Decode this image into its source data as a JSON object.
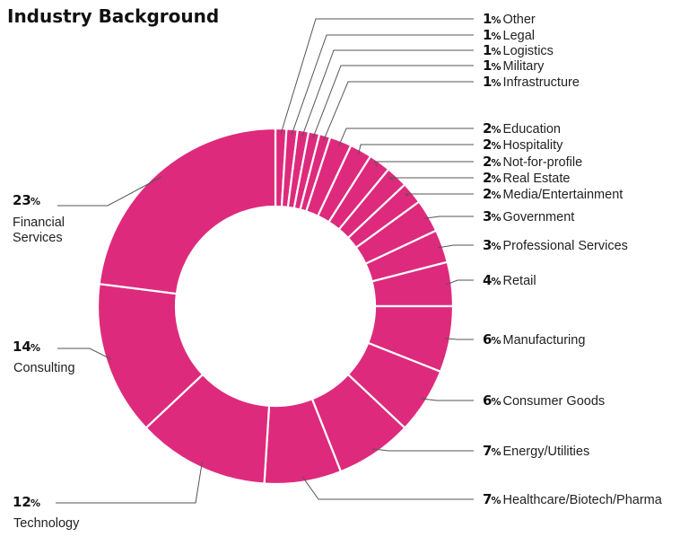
{
  "chart_data": {
    "type": "pie",
    "title": "Industry Background",
    "unit": "%",
    "color": "#de2a7c",
    "slices": [
      {
        "label": "Other",
        "value": 1
      },
      {
        "label": "Legal",
        "value": 1
      },
      {
        "label": "Logistics",
        "value": 1
      },
      {
        "label": "Military",
        "value": 1
      },
      {
        "label": "Infrastructure",
        "value": 1
      },
      {
        "label": "Education",
        "value": 2
      },
      {
        "label": "Hospitality",
        "value": 2
      },
      {
        "label": "Not-for-profile",
        "value": 2
      },
      {
        "label": "Real Estate",
        "value": 2
      },
      {
        "label": "Media/Entertainment",
        "value": 2
      },
      {
        "label": "Government",
        "value": 3
      },
      {
        "label": "Professional Services",
        "value": 3
      },
      {
        "label": "Retail",
        "value": 4
      },
      {
        "label": "Manufacturing",
        "value": 6
      },
      {
        "label": "Consumer Goods",
        "value": 6
      },
      {
        "label": "Energy/Utilities",
        "value": 7
      },
      {
        "label": "Healthcare/Biotech/Pharma",
        "value": 7
      },
      {
        "label": "Technology",
        "value": 12
      },
      {
        "label": "Consulting",
        "value": 14
      },
      {
        "label": "Financial Services",
        "value": 23
      }
    ]
  }
}
